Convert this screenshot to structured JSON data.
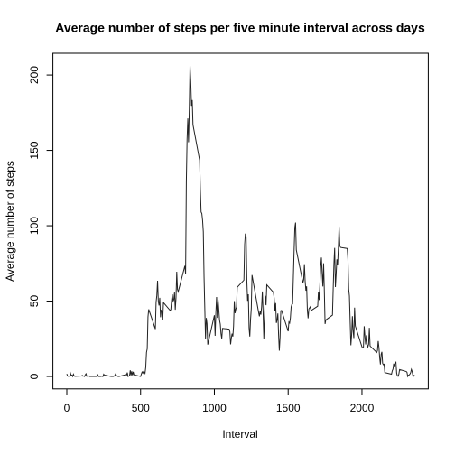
{
  "chart_data": {
    "type": "line",
    "title": "Average number of steps per five minute interval across days",
    "x_label": "Interval",
    "y_label": "Average number of steps",
    "color": "#222222",
    "xlim": [
      -94.2,
      2449.2
    ],
    "xticks": [
      0,
      500,
      1000,
      1500,
      2000
    ],
    "ylim": [
      -8.25,
      214.42
    ],
    "yticks": [
      0,
      50,
      100,
      150,
      200
    ],
    "x": [
      0,
      5,
      10,
      15,
      20,
      25,
      30,
      35,
      40,
      45,
      50,
      55,
      100,
      105,
      110,
      115,
      120,
      125,
      130,
      135,
      140,
      145,
      150,
      155,
      200,
      205,
      210,
      215,
      220,
      225,
      230,
      235,
      240,
      245,
      250,
      255,
      300,
      305,
      310,
      315,
      320,
      325,
      330,
      335,
      340,
      345,
      350,
      355,
      400,
      405,
      410,
      415,
      420,
      425,
      430,
      435,
      440,
      445,
      450,
      455,
      500,
      505,
      510,
      515,
      520,
      525,
      530,
      535,
      540,
      545,
      550,
      555,
      600,
      605,
      610,
      615,
      620,
      625,
      630,
      635,
      640,
      645,
      650,
      655,
      700,
      705,
      710,
      715,
      720,
      725,
      730,
      735,
      740,
      745,
      750,
      755,
      800,
      805,
      810,
      815,
      820,
      825,
      830,
      835,
      840,
      845,
      850,
      855,
      900,
      905,
      910,
      915,
      920,
      925,
      930,
      935,
      940,
      945,
      950,
      955,
      1000,
      1005,
      1010,
      1015,
      1020,
      1025,
      1030,
      1035,
      1040,
      1045,
      1050,
      1055,
      1100,
      1105,
      1110,
      1115,
      1120,
      1125,
      1130,
      1135,
      1140,
      1145,
      1150,
      1155,
      1200,
      1205,
      1210,
      1215,
      1220,
      1225,
      1230,
      1235,
      1240,
      1245,
      1250,
      1255,
      1300,
      1305,
      1310,
      1315,
      1320,
      1325,
      1330,
      1335,
      1340,
      1345,
      1350,
      1355,
      1400,
      1405,
      1410,
      1415,
      1420,
      1425,
      1430,
      1435,
      1440,
      1445,
      1450,
      1455,
      1500,
      1505,
      1510,
      1515,
      1520,
      1525,
      1530,
      1535,
      1540,
      1545,
      1550,
      1555,
      1600,
      1605,
      1610,
      1615,
      1620,
      1625,
      1630,
      1635,
      1640,
      1645,
      1650,
      1655,
      1700,
      1705,
      1710,
      1715,
      1720,
      1725,
      1730,
      1735,
      1740,
      1745,
      1750,
      1755,
      1800,
      1805,
      1810,
      1815,
      1820,
      1825,
      1830,
      1835,
      1840,
      1845,
      1850,
      1855,
      1900,
      1905,
      1910,
      1915,
      1920,
      1925,
      1930,
      1935,
      1940,
      1945,
      1950,
      1955,
      2000,
      2005,
      2010,
      2015,
      2020,
      2025,
      2030,
      2035,
      2040,
      2045,
      2050,
      2055,
      2100,
      2105,
      2110,
      2115,
      2120,
      2125,
      2130,
      2135,
      2140,
      2145,
      2150,
      2155,
      2200,
      2205,
      2210,
      2215,
      2220,
      2225,
      2230,
      2235,
      2240,
      2245,
      2250,
      2255,
      2300,
      2305,
      2310,
      2315,
      2320,
      2325,
      2330,
      2335,
      2340,
      2345,
      2350,
      2355
    ],
    "values": [
      1.7,
      0.3,
      0.1,
      0.2,
      0.1,
      2.1,
      0.5,
      0.9,
      0,
      1.5,
      0.3,
      0.1,
      0.3,
      0.7,
      0.2,
      0.3,
      0,
      1.1,
      1.8,
      0.2,
      0.2,
      0.4,
      0.3,
      0,
      0,
      0,
      1.1,
      0,
      0,
      0.1,
      0,
      0.2,
      0,
      0,
      1.5,
      0.9,
      0,
      0,
      0,
      0,
      0.2,
      0.6,
      1.6,
      0.6,
      0.5,
      0.1,
      0,
      0,
      1.2,
      0.9,
      2.6,
      0,
      0.3,
      0.4,
      4.1,
      0.7,
      3.5,
      0.8,
      3.1,
      1.1,
      0,
      1.6,
      3,
      2.2,
      3.3,
      3,
      2.1,
      6.1,
      16,
      18.3,
      39.5,
      44.5,
      31.5,
      49.3,
      53.8,
      63.5,
      50,
      47.1,
      52.2,
      39.3,
      44,
      44.2,
      37.4,
      49,
      43.8,
      44.4,
      50.5,
      54.5,
      49.9,
      51,
      55.7,
      44.3,
      52.3,
      69.5,
      57.8,
      56.2,
      73.4,
      68.2,
      129.4,
      157.5,
      171.2,
      155.4,
      177.3,
      206.2,
      195.9,
      179.6,
      183.4,
      167,
      143.5,
      124,
      109.1,
      108.1,
      103.7,
      96,
      66.2,
      45.2,
      24.8,
      38.8,
      35,
      21.1,
      40.6,
      27,
      42.4,
      52.7,
      38.9,
      50.8,
      44.3,
      37.4,
      34.7,
      28.3,
      25.1,
      31.9,
      31.4,
      29.7,
      21.3,
      25.5,
      28.4,
      26.5,
      33.4,
      50,
      42,
      44.6,
      46,
      59.2,
      63.9,
      87.7,
      94.8,
      92.8,
      63.4,
      50.2,
      54.5,
      32.4,
      26.5,
      37.7,
      45.1,
      67.3,
      42.3,
      39.9,
      43.3,
      41,
      46.2,
      56.4,
      42.8,
      25.1,
      40,
      53.5,
      47.3,
      60.8,
      55.8,
      52,
      43.6,
      48.7,
      35.5,
      37.5,
      41.8,
      27.5,
      17.1,
      26.1,
      43.6,
      43.8,
      30,
      36.1,
      35.5,
      38.8,
      46,
      47.8,
      48.1,
      65.3,
      82.9,
      98.7,
      102.1,
      84,
      62.1,
      64.1,
      74.5,
      63.2,
      56.9,
      59.8,
      43.9,
      38.6,
      44.7,
      45.5,
      46.2,
      43.7,
      46.6,
      56.3,
      50.7,
      61.2,
      72.7,
      78.9,
      68.9,
      59.7,
      75.1,
      56.5,
      34.8,
      37.5,
      40.7,
      58,
      74.7,
      85.3,
      59.3,
      67.8,
      77.7,
      74.2,
      85.3,
      99.5,
      86.6,
      85.6,
      84.9,
      77.8,
      58,
      53.4,
      36.3,
      20.7,
      27.4,
      40,
      30.2,
      25.5,
      45.7,
      33.5,
      19.6,
      19,
      19.3,
      33.3,
      26.8,
      21.2,
      27.3,
      21.3,
      19.5,
      21.3,
      32.3,
      20.2,
      15.9,
      17.2,
      23.5,
      19.2,
      12.5,
      8,
      14.7,
      16.3,
      8.7,
      7.8,
      8.1,
      2.6,
      1.5,
      3.7,
      4.8,
      8.5,
      7.1,
      8.7,
      9.8,
      2.2,
      0.3,
      0.1,
      1.6,
      4.6,
      3.3,
      2.8,
      0,
      0.8,
      1,
      1.6,
      2.6,
      4.7,
      3.3,
      0.6,
      0.2,
      1.1
    ]
  }
}
